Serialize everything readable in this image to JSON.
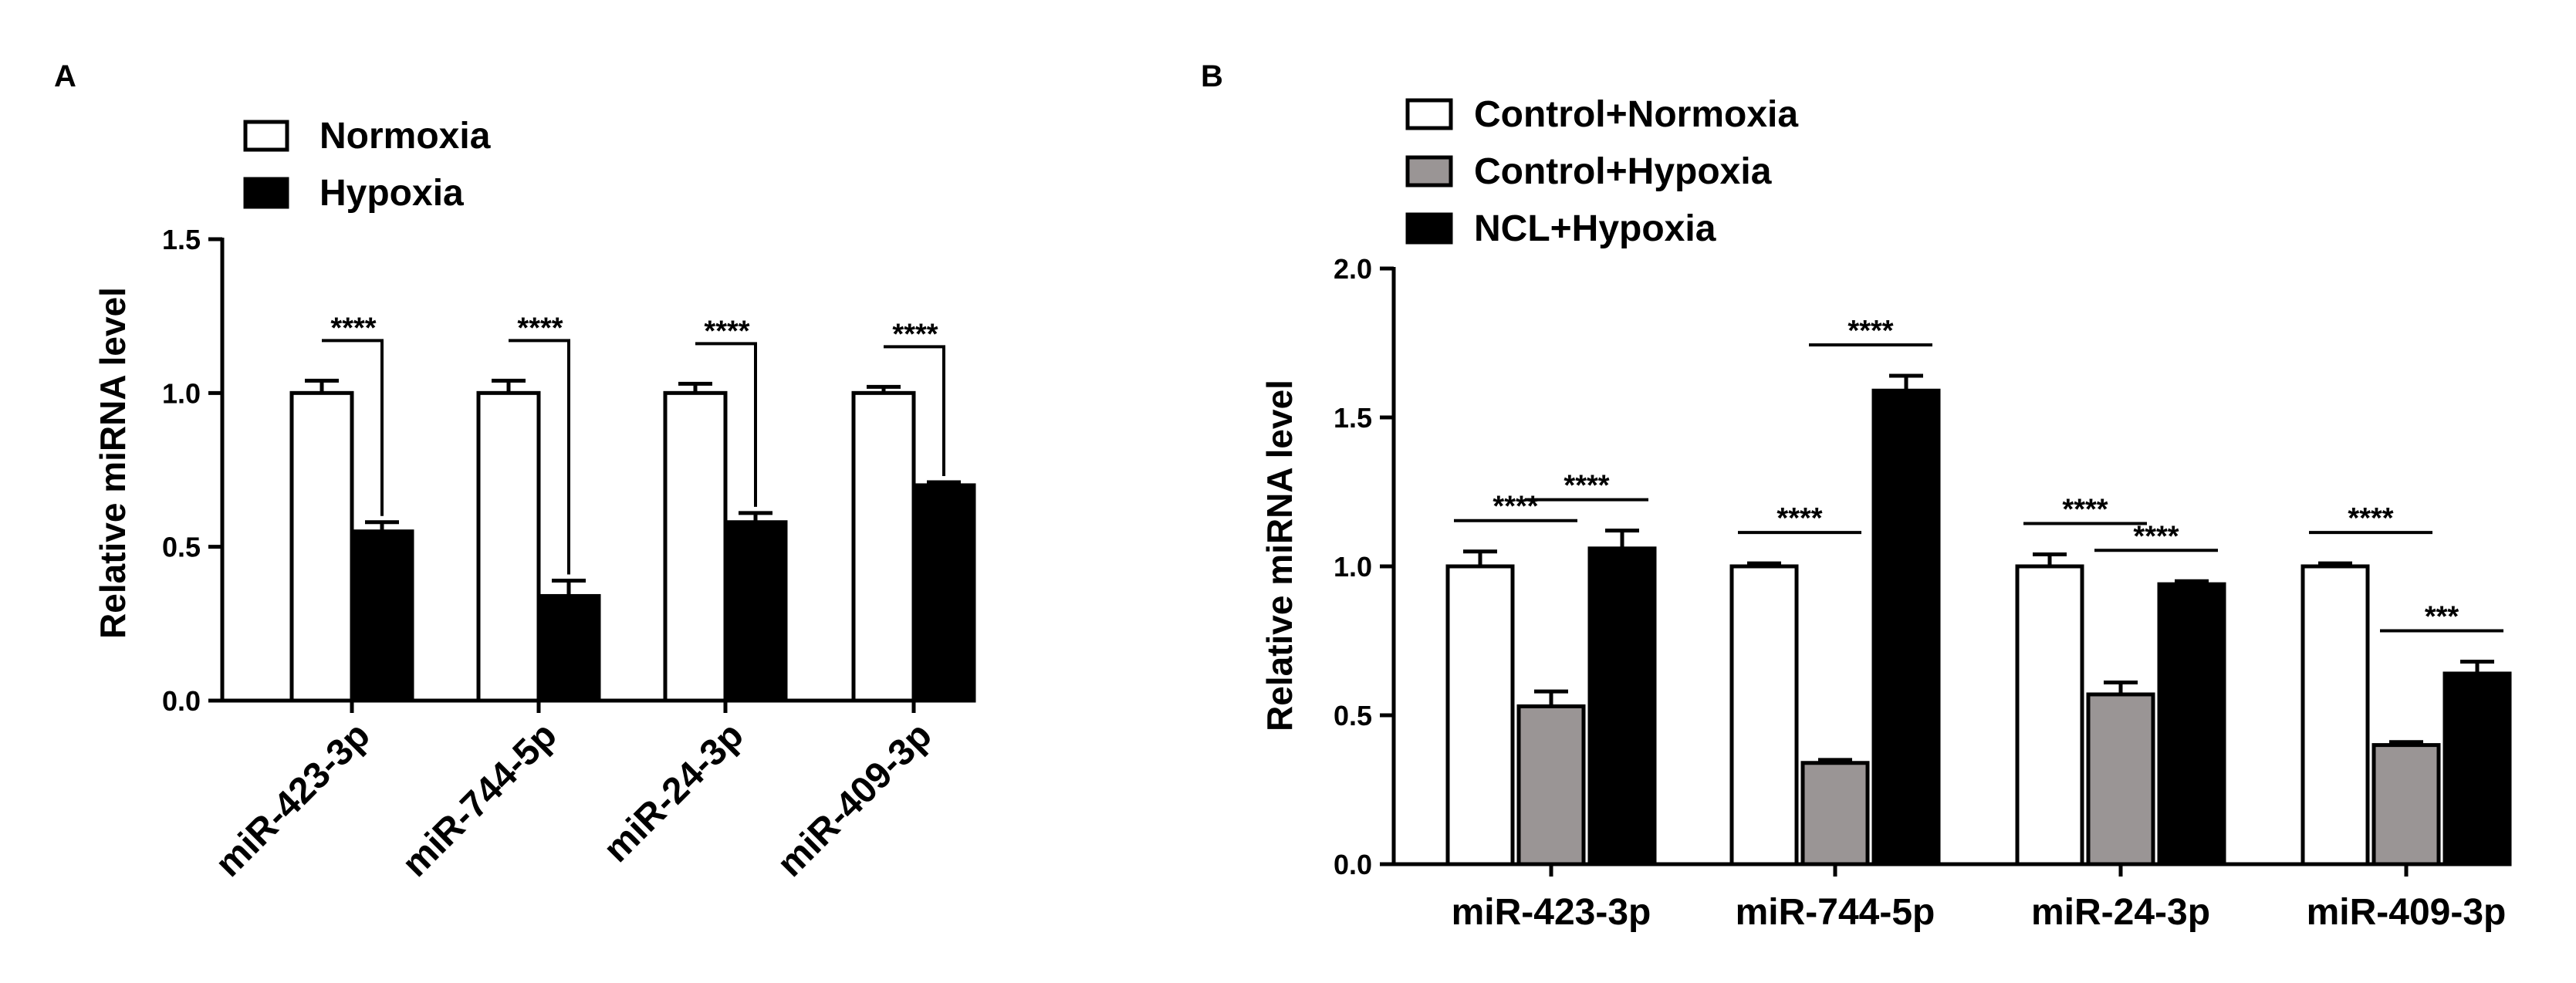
{
  "chart_data": [
    {
      "type": "bar",
      "panel_label": "A",
      "categories": [
        "miR-423-3p",
        "miR-744-5p",
        "miR-24-3p",
        "miR-409-3p"
      ],
      "series": [
        {
          "name": "Normoxia",
          "values": [
            1.0,
            1.0,
            1.0,
            1.0
          ],
          "errors": [
            0.04,
            0.04,
            0.03,
            0.02
          ],
          "color": "#ffffff"
        },
        {
          "name": "Hypoxia",
          "values": [
            0.55,
            0.34,
            0.58,
            0.7
          ],
          "errors": [
            0.03,
            0.05,
            0.03,
            0.01
          ],
          "color": "#000000"
        }
      ],
      "significance": [
        "****",
        "****",
        "****",
        "****"
      ],
      "ylabel": "Relative miRNA level",
      "xlabel": "",
      "ylim": [
        0,
        1.5
      ],
      "yticks": [
        "0.0",
        "0.5",
        "1.0",
        "1.5"
      ],
      "legend_position": "top-left"
    },
    {
      "type": "bar",
      "panel_label": "B",
      "categories": [
        "miR-423-3p",
        "miR-744-5p",
        "miR-24-3p",
        "miR-409-3p"
      ],
      "series": [
        {
          "name": "Control+Normoxia",
          "values": [
            1.0,
            1.0,
            1.0,
            1.0
          ],
          "errors": [
            0.05,
            0.01,
            0.04,
            0.01
          ],
          "color": "#ffffff"
        },
        {
          "name": "Control+Hypoxia",
          "values": [
            0.53,
            0.34,
            0.57,
            0.4
          ],
          "errors": [
            0.05,
            0.01,
            0.04,
            0.01
          ],
          "color": "#9a9595"
        },
        {
          "name": "NCL+Hypoxia",
          "values": [
            1.06,
            1.59,
            0.94,
            0.64
          ],
          "errors": [
            0.06,
            0.05,
            0.01,
            0.04
          ],
          "color": "#000000"
        }
      ],
      "significance": [
        {
          "category": 0,
          "from": 0,
          "to": 1,
          "label": "****"
        },
        {
          "category": 0,
          "from": 1,
          "to": 2,
          "label": "****"
        },
        {
          "category": 1,
          "from": 0,
          "to": 1,
          "label": "****"
        },
        {
          "category": 1,
          "from": 1,
          "to": 2,
          "label": "****"
        },
        {
          "category": 2,
          "from": 0,
          "to": 1,
          "label": "****"
        },
        {
          "category": 2,
          "from": 1,
          "to": 2,
          "label": "****"
        },
        {
          "category": 3,
          "from": 0,
          "to": 1,
          "label": "****"
        },
        {
          "category": 3,
          "from": 1,
          "to": 2,
          "label": "***"
        }
      ],
      "ylabel": "Relative miRNA level",
      "xlabel": "",
      "ylim": [
        0,
        2.0
      ],
      "yticks": [
        "0.0",
        "0.5",
        "1.0",
        "1.5",
        "2.0"
      ],
      "legend_position": "top-left"
    }
  ]
}
